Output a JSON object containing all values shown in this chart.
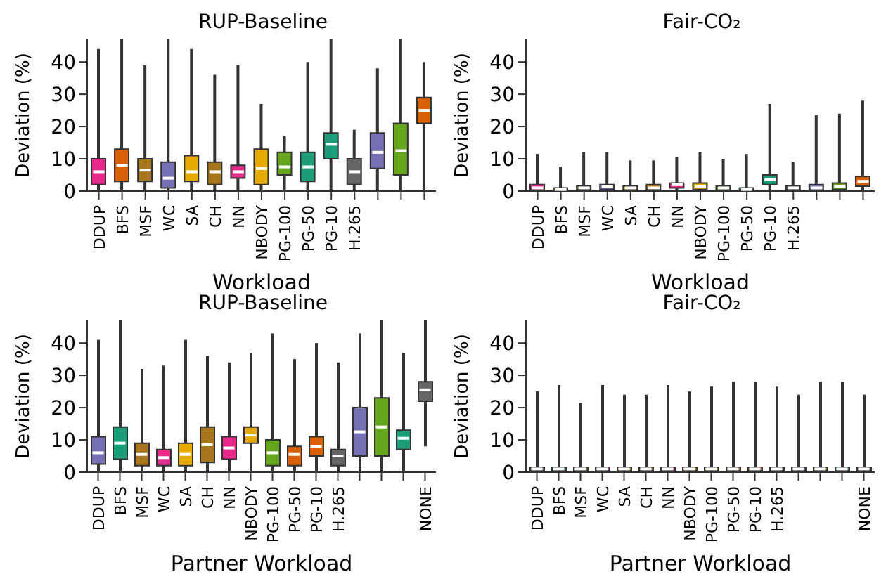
{
  "chart_data": [
    {
      "type": "box",
      "title": "RUP-Baseline",
      "xlabel": "Workload",
      "ylabel": "Deviation (%)",
      "ylim": [
        0,
        47
      ],
      "yticks": [
        0,
        10,
        20,
        30,
        40
      ],
      "categories": [
        "DDUP",
        "BFS",
        "MSF",
        "WC",
        "SA",
        "CH",
        "NN",
        "NBODY",
        "PG-100",
        "PG-50",
        "PG-10",
        "H.265",
        null,
        null,
        null
      ],
      "colors": [
        "#e7298a",
        "#d95f02",
        "#a6761d",
        "#7570b3",
        "#e6ab02",
        "#a6761d",
        "#e7298a",
        "#e6ab02",
        "#66a61e",
        "#1b9e77",
        "#1b9e77",
        "#666666",
        "#7570b3",
        "#66a61e",
        "#d95f02"
      ],
      "boxes": [
        {
          "low": 0,
          "q1": 2,
          "median": 6,
          "q3": 10,
          "high": 44
        },
        {
          "low": 0,
          "q1": 3,
          "median": 8,
          "q3": 13,
          "high": 47
        },
        {
          "low": 0,
          "q1": 3,
          "median": 6.5,
          "q3": 10,
          "high": 39
        },
        {
          "low": 0,
          "q1": 1,
          "median": 4,
          "q3": 9,
          "high": 47
        },
        {
          "low": 0,
          "q1": 3,
          "median": 6,
          "q3": 11,
          "high": 44
        },
        {
          "low": 0,
          "q1": 2,
          "median": 6,
          "q3": 9,
          "high": 36
        },
        {
          "low": 0,
          "q1": 4,
          "median": 6,
          "q3": 8,
          "high": 39
        },
        {
          "low": 0,
          "q1": 2,
          "median": 7,
          "q3": 13,
          "high": 27
        },
        {
          "low": 0,
          "q1": 5,
          "median": 7.5,
          "q3": 12,
          "high": 17
        },
        {
          "low": 0,
          "q1": 3,
          "median": 7.5,
          "q3": 12,
          "high": 40
        },
        {
          "low": 0,
          "q1": 10,
          "median": 14.5,
          "q3": 18,
          "high": 47
        },
        {
          "low": 0,
          "q1": 2,
          "median": 6,
          "q3": 10,
          "high": 19
        },
        {
          "low": 0,
          "q1": 7,
          "median": 12,
          "q3": 18,
          "high": 38
        },
        {
          "low": 0,
          "q1": 5,
          "median": 12.5,
          "q3": 21,
          "high": 47
        },
        {
          "low": 0,
          "q1": 21,
          "median": 25,
          "q3": 29,
          "high": 40
        }
      ]
    },
    {
      "type": "box",
      "title": "Fair-CO₂",
      "xlabel": "Workload",
      "ylabel": "Deviation (%)",
      "ylim": [
        0,
        47
      ],
      "yticks": [
        0,
        10,
        20,
        30,
        40
      ],
      "categories": [
        "DDUP",
        "BFS",
        "MSF",
        "WC",
        "SA",
        "CH",
        "NN",
        "NBODY",
        "PG-100",
        "PG-50",
        "PG-10",
        "H.265",
        null,
        null,
        null
      ],
      "colors": [
        "#e7298a",
        "#d95f02",
        "#a6761d",
        "#7570b3",
        "#e6ab02",
        "#a6761d",
        "#e7298a",
        "#e6ab02",
        "#66a61e",
        "#1b9e77",
        "#1b9e77",
        "#666666",
        "#7570b3",
        "#66a61e",
        "#d95f02"
      ],
      "boxes": [
        {
          "low": 0,
          "q1": 0.3,
          "median": 1,
          "q3": 2,
          "high": 11.5
        },
        {
          "low": 0,
          "q1": 0.2,
          "median": 0.5,
          "q3": 1,
          "high": 7.5
        },
        {
          "low": 0,
          "q1": 0.5,
          "median": 1,
          "q3": 1.5,
          "high": 12
        },
        {
          "low": 0,
          "q1": 0.5,
          "median": 1.5,
          "q3": 2,
          "high": 12
        },
        {
          "low": 0,
          "q1": 0.4,
          "median": 1,
          "q3": 1.5,
          "high": 9.5
        },
        {
          "low": 0,
          "q1": 0.5,
          "median": 1,
          "q3": 2,
          "high": 9.5
        },
        {
          "low": 0,
          "q1": 1,
          "median": 2,
          "q3": 2.5,
          "high": 10.5
        },
        {
          "low": 0,
          "q1": 0.5,
          "median": 1.5,
          "q3": 2.5,
          "high": 12
        },
        {
          "low": 0,
          "q1": 0.3,
          "median": 1,
          "q3": 1.5,
          "high": 10
        },
        {
          "low": 0,
          "q1": 0.2,
          "median": 0.5,
          "q3": 1,
          "high": 11.5
        },
        {
          "low": 0,
          "q1": 2,
          "median": 3.5,
          "q3": 5,
          "high": 27
        },
        {
          "low": 0,
          "q1": 0.5,
          "median": 1,
          "q3": 1.5,
          "high": 9
        },
        {
          "low": 0,
          "q1": 0.3,
          "median": 1,
          "q3": 2,
          "high": 23.5
        },
        {
          "low": 0,
          "q1": 0.5,
          "median": 1.5,
          "q3": 2.5,
          "high": 24
        },
        {
          "low": 0,
          "q1": 1.5,
          "median": 3,
          "q3": 4.5,
          "high": 28
        }
      ]
    },
    {
      "type": "box",
      "title": "RUP-Baseline",
      "xlabel": "Partner Workload",
      "ylabel": "Deviation (%)",
      "ylim": [
        0,
        47
      ],
      "yticks": [
        0,
        10,
        20,
        30,
        40
      ],
      "categories": [
        "DDUP",
        "BFS",
        "MSF",
        "WC",
        "SA",
        "CH",
        "NN",
        "NBODY",
        "PG-100",
        "PG-50",
        "PG-10",
        "H.265",
        null,
        null,
        null,
        "NONE"
      ],
      "colors": [
        "#7570b3",
        "#1b9e77",
        "#a6761d",
        "#e7298a",
        "#e6ab02",
        "#a6761d",
        "#e7298a",
        "#e6ab02",
        "#66a61e",
        "#d95f02",
        "#d95f02",
        "#666666",
        "#7570b3",
        "#66a61e",
        "#1b9e77",
        "#666666"
      ],
      "boxes": [
        {
          "low": 0,
          "q1": 2.5,
          "median": 6,
          "q3": 11,
          "high": 41
        },
        {
          "low": 0,
          "q1": 4,
          "median": 9,
          "q3": 14,
          "high": 47
        },
        {
          "low": 0,
          "q1": 2,
          "median": 5.5,
          "q3": 9,
          "high": 32
        },
        {
          "low": 0,
          "q1": 2,
          "median": 4.5,
          "q3": 7,
          "high": 33
        },
        {
          "low": 0,
          "q1": 2,
          "median": 5.5,
          "q3": 9,
          "high": 41
        },
        {
          "low": 0,
          "q1": 3,
          "median": 8.5,
          "q3": 14,
          "high": 36
        },
        {
          "low": 0,
          "q1": 4,
          "median": 7.5,
          "q3": 11,
          "high": 34
        },
        {
          "low": 0,
          "q1": 9,
          "median": 11.5,
          "q3": 14,
          "high": 37
        },
        {
          "low": 0,
          "q1": 2,
          "median": 6,
          "q3": 10,
          "high": 43
        },
        {
          "low": 0,
          "q1": 2,
          "median": 5.5,
          "q3": 8,
          "high": 35
        },
        {
          "low": 0,
          "q1": 5,
          "median": 8,
          "q3": 11,
          "high": 40
        },
        {
          "low": 0,
          "q1": 2,
          "median": 5,
          "q3": 7,
          "high": 34
        },
        {
          "low": 0,
          "q1": 5,
          "median": 12.5,
          "q3": 20,
          "high": 43
        },
        {
          "low": 0,
          "q1": 5,
          "median": 14,
          "q3": 23,
          "high": 47
        },
        {
          "low": 0,
          "q1": 7,
          "median": 10.5,
          "q3": 13,
          "high": 37
        },
        {
          "low": 8,
          "q1": 22,
          "median": 25.5,
          "q3": 28,
          "high": 47
        }
      ]
    },
    {
      "type": "box",
      "title": "Fair-CO₂",
      "xlabel": "Partner Workload",
      "ylabel": "Deviation (%)",
      "ylim": [
        0,
        47
      ],
      "yticks": [
        0,
        10,
        20,
        30,
        40
      ],
      "categories": [
        "DDUP",
        "BFS",
        "MSF",
        "WC",
        "SA",
        "CH",
        "NN",
        "NBODY",
        "PG-100",
        "PG-50",
        "PG-10",
        "H.265",
        null,
        null,
        null,
        "NONE"
      ],
      "colors": [
        "#7570b3",
        "#1b9e77",
        "#a6761d",
        "#e7298a",
        "#e6ab02",
        "#a6761d",
        "#e7298a",
        "#e6ab02",
        "#66a61e",
        "#d95f02",
        "#d95f02",
        "#666666",
        "#7570b3",
        "#66a61e",
        "#1b9e77",
        "#666666"
      ],
      "boxes": [
        {
          "low": 0,
          "q1": 0.5,
          "median": 1,
          "q3": 1.5,
          "high": 25
        },
        {
          "low": 0,
          "q1": 0.5,
          "median": 1,
          "q3": 1.5,
          "high": 27
        },
        {
          "low": 0,
          "q1": 0.5,
          "median": 1,
          "q3": 1.5,
          "high": 21.5
        },
        {
          "low": 0,
          "q1": 0.5,
          "median": 1,
          "q3": 1.5,
          "high": 27
        },
        {
          "low": 0,
          "q1": 0.5,
          "median": 1,
          "q3": 1.5,
          "high": 24
        },
        {
          "low": 0,
          "q1": 0.5,
          "median": 1,
          "q3": 1.5,
          "high": 24
        },
        {
          "low": 0,
          "q1": 0.5,
          "median": 1,
          "q3": 1.5,
          "high": 27
        },
        {
          "low": 0,
          "q1": 0.5,
          "median": 1,
          "q3": 1.5,
          "high": 25
        },
        {
          "low": 0,
          "q1": 0.5,
          "median": 1,
          "q3": 1.5,
          "high": 26.5
        },
        {
          "low": 0,
          "q1": 0.5,
          "median": 1,
          "q3": 1.5,
          "high": 28
        },
        {
          "low": 0,
          "q1": 0.5,
          "median": 1,
          "q3": 1.5,
          "high": 28
        },
        {
          "low": 0,
          "q1": 0.5,
          "median": 1,
          "q3": 1.5,
          "high": 26.5
        },
        {
          "low": 0,
          "q1": 0.5,
          "median": 1,
          "q3": 1.5,
          "high": 24
        },
        {
          "low": 0,
          "q1": 0.5,
          "median": 1,
          "q3": 1.5,
          "high": 28
        },
        {
          "low": 0,
          "q1": 0.5,
          "median": 1,
          "q3": 1.5,
          "high": 28
        },
        {
          "low": 0,
          "q1": 0.5,
          "median": 1,
          "q3": 1.5,
          "high": 24
        }
      ]
    }
  ]
}
